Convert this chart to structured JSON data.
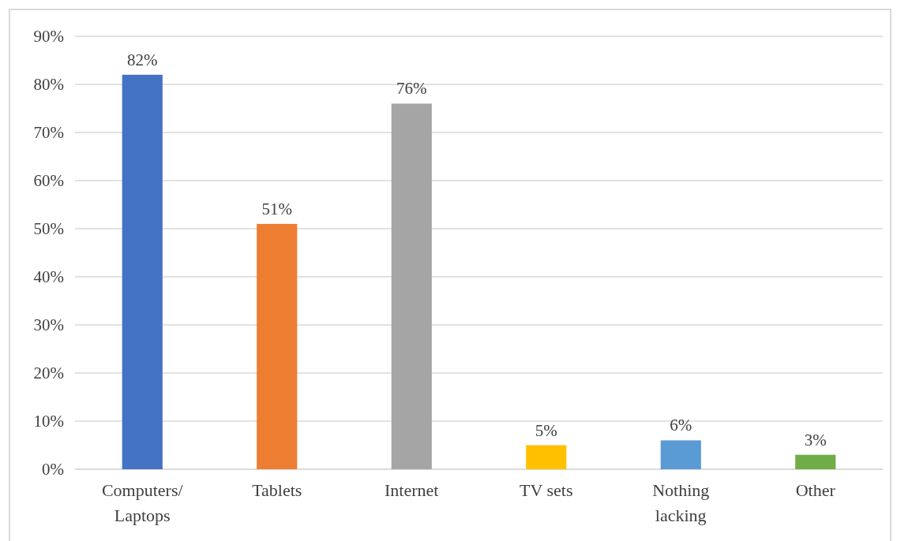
{
  "chart_data": {
    "type": "bar",
    "categories": [
      "Computers/ Laptops",
      "Tablets",
      "Internet",
      "TV sets",
      "Nothing lacking",
      "Other"
    ],
    "values": [
      82,
      51,
      76,
      5,
      6,
      3
    ],
    "colors": [
      "#4472c4",
      "#ed7d31",
      "#a5a5a5",
      "#ffc000",
      "#5b9bd5",
      "#70ad47"
    ],
    "value_labels": [
      "82%",
      "51%",
      "76%",
      "5%",
      "6%",
      "3%"
    ],
    "ylim": [
      0,
      90
    ],
    "yticks": [
      {
        "value": 0,
        "label": "0%"
      },
      {
        "value": 10,
        "label": "10%"
      },
      {
        "value": 20,
        "label": "20%"
      },
      {
        "value": 30,
        "label": "30%"
      },
      {
        "value": 40,
        "label": "40%"
      },
      {
        "value": 50,
        "label": "50%"
      },
      {
        "value": 60,
        "label": "60%"
      },
      {
        "value": 70,
        "label": "70%"
      },
      {
        "value": 80,
        "label": "80%"
      },
      {
        "value": 90,
        "label": "90%"
      }
    ],
    "grid": "y"
  }
}
